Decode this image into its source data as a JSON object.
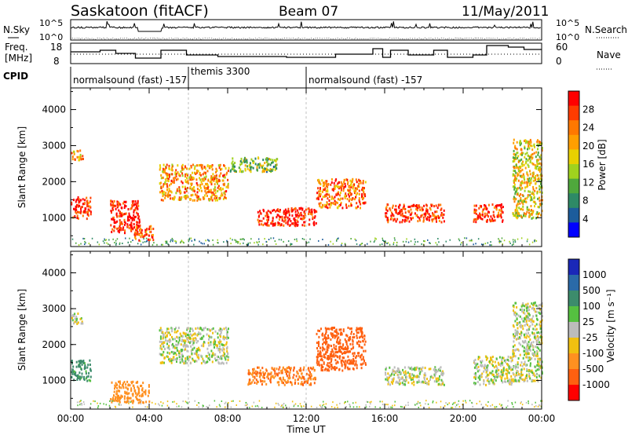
{
  "header": {
    "station": "Saskatoon (fitACF)",
    "beam": "Beam 07",
    "date": "11/May/2011"
  },
  "top_panels": {
    "nsky_label": "N.Sky",
    "nsky_ticks": [
      "10^5",
      "10^0"
    ],
    "nsearch_label": "N.Search",
    "nsearch_ticks": [
      "10^5",
      "10^0"
    ],
    "freq_label": "Freq.",
    "freq_unit": "[MHz]",
    "freq_ticks": [
      "18",
      "8"
    ],
    "nave_label": "Nave",
    "nave_ticks": [
      "60",
      "0"
    ],
    "cpid_label": "CPID",
    "cpid_segments": [
      {
        "start_hour": 0,
        "end_hour": 6,
        "label": "normalsound (fast) -157"
      },
      {
        "start_hour": 6,
        "end_hour": 12,
        "label": "themis 3300"
      },
      {
        "start_hour": 12,
        "end_hour": 24,
        "label": "normalsound (fast) -157"
      }
    ]
  },
  "power_colorbar": {
    "title": "Power [dB]",
    "ticks": [
      "28",
      "24",
      "20",
      "16",
      "12",
      "8",
      "4"
    ],
    "colors": [
      "#ff0000",
      "#ff3c00",
      "#ff7800",
      "#ff9f00",
      "#e8d000",
      "#a0d21e",
      "#4fa83c",
      "#2e8a66",
      "#1c5c9c",
      "#0000ff"
    ]
  },
  "velocity_colorbar": {
    "title": "Velocity [m s⁻¹]",
    "ticks": [
      "1000",
      "500",
      "100",
      "25",
      "-25",
      "-100",
      "-500",
      "-1000"
    ],
    "colors": [
      "#1a28b8",
      "#2a6aa8",
      "#3c8c6c",
      "#55c040",
      "#bcbcbc",
      "#f0c010",
      "#ff9020",
      "#ff6010",
      "#ff0000"
    ]
  },
  "chart_data": [
    {
      "type": "heatmap",
      "name": "power",
      "ylabel": "Slant Range [km]",
      "xlabel": "Time UT",
      "x_unit": "hours UT",
      "xlim": [
        0,
        24
      ],
      "ylim": [
        200,
        4600
      ],
      "xticks": [
        "00:00",
        "04:00",
        "08:00",
        "12:00",
        "16:00",
        "20:00",
        "00:00"
      ],
      "yticks": [
        "1000",
        "2000",
        "3000",
        "4000"
      ],
      "features": [
        {
          "x_hours": [
            0.0,
            1.0
          ],
          "range_km": [
            1000,
            1600
          ],
          "value_db": 26
        },
        {
          "x_hours": [
            0.0,
            0.6
          ],
          "range_km": [
            2600,
            2900
          ],
          "value_db": 20
        },
        {
          "x_hours": [
            2.0,
            3.5
          ],
          "range_km": [
            600,
            1500
          ],
          "value_db": 28
        },
        {
          "x_hours": [
            3.2,
            4.2
          ],
          "range_km": [
            400,
            800
          ],
          "value_db": 24
        },
        {
          "x_hours": [
            4.5,
            8.0
          ],
          "range_km": [
            1500,
            2500
          ],
          "value_db": 20
        },
        {
          "x_hours": [
            8.0,
            10.5
          ],
          "range_km": [
            2300,
            2700
          ],
          "value_db": 12
        },
        {
          "x_hours": [
            9.5,
            12.5
          ],
          "range_km": [
            800,
            1300
          ],
          "value_db": 28
        },
        {
          "x_hours": [
            12.5,
            15.0
          ],
          "range_km": [
            1300,
            2100
          ],
          "value_db": 22
        },
        {
          "x_hours": [
            16.0,
            19.0
          ],
          "range_km": [
            900,
            1400
          ],
          "value_db": 26
        },
        {
          "x_hours": [
            20.5,
            22.0
          ],
          "range_km": [
            900,
            1400
          ],
          "value_db": 26
        },
        {
          "x_hours": [
            22.5,
            24.0
          ],
          "range_km": [
            1000,
            3200
          ],
          "value_db": 16
        }
      ]
    },
    {
      "type": "heatmap",
      "name": "velocity",
      "ylabel": "Slant Range [km]",
      "xlabel": "Time UT",
      "x_unit": "hours UT",
      "xlim": [
        0,
        24
      ],
      "ylim": [
        200,
        4600
      ],
      "xticks": [
        "00:00",
        "04:00",
        "08:00",
        "12:00",
        "16:00",
        "20:00",
        "00:00"
      ],
      "yticks": [
        "1000",
        "2000",
        "3000",
        "4000"
      ],
      "features": [
        {
          "x_hours": [
            0.0,
            1.0
          ],
          "range_km": [
            1000,
            1600
          ],
          "value_ms": 100
        },
        {
          "x_hours": [
            0.0,
            0.6
          ],
          "range_km": [
            2600,
            2900
          ],
          "value_ms": 0
        },
        {
          "x_hours": [
            2.0,
            4.0
          ],
          "range_km": [
            400,
            1000
          ],
          "value_ms": -150
        },
        {
          "x_hours": [
            4.5,
            8.0
          ],
          "range_km": [
            1500,
            2500
          ],
          "value_ms": 0
        },
        {
          "x_hours": [
            9.0,
            12.5
          ],
          "range_km": [
            900,
            1400
          ],
          "value_ms": -300
        },
        {
          "x_hours": [
            12.5,
            15.0
          ],
          "range_km": [
            1300,
            2500
          ],
          "value_ms": -500
        },
        {
          "x_hours": [
            16.0,
            19.0
          ],
          "range_km": [
            900,
            1400
          ],
          "value_ms": 0
        },
        {
          "x_hours": [
            20.5,
            22.5
          ],
          "range_km": [
            900,
            1700
          ],
          "value_ms": 0
        },
        {
          "x_hours": [
            22.5,
            24.0
          ],
          "range_km": [
            1000,
            3200
          ],
          "value_ms": 0
        }
      ]
    }
  ]
}
